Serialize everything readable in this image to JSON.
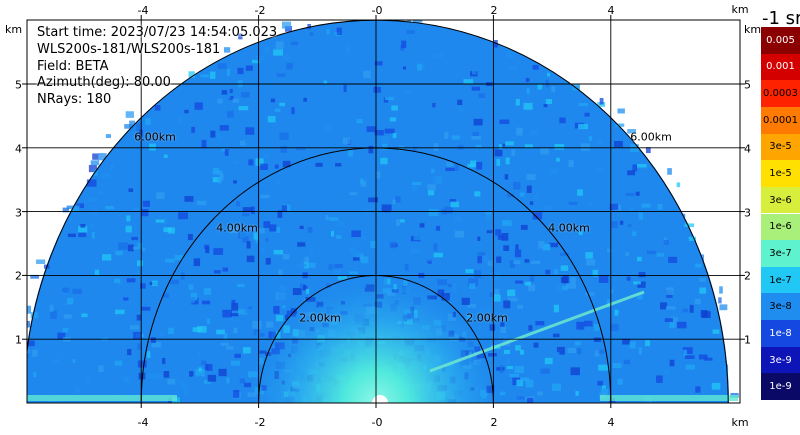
{
  "info": {
    "start_time": "Start time: 2023/07/23 14:54:05.023",
    "instrument": "WLS200s-181/WLS200s-181",
    "field": "Field: BETA",
    "azimuth": "Azimuth(deg): 80.00",
    "nrays": "NRays: 180"
  },
  "axes": {
    "unit": "km",
    "x_ticks": [
      "-4",
      "-2",
      "-0",
      "2",
      "4"
    ],
    "y_ticks": [
      "5",
      "4",
      "3",
      "2",
      "1"
    ],
    "x_tick_values": [
      -4,
      -2,
      0,
      2,
      4
    ],
    "y_tick_values": [
      5,
      4,
      3,
      2,
      1
    ],
    "xlim": [
      -6,
      6
    ],
    "ylim": [
      0,
      6
    ]
  },
  "rings": [
    {
      "label": "2.00km",
      "radius_km": 2
    },
    {
      "label": "4.00km",
      "radius_km": 4
    },
    {
      "label": "6.00km",
      "radius_km": 6
    }
  ],
  "colorbar": {
    "title": "-1 sr",
    "levels": [
      {
        "label": "0.005",
        "color": "#8b0000"
      },
      {
        "label": "0.001",
        "color": "#d40000"
      },
      {
        "label": "0.0003",
        "color": "#ff2200"
      },
      {
        "label": "0.0001",
        "color": "#ff7a00"
      },
      {
        "label": "3e-5",
        "color": "#ffa500"
      },
      {
        "label": "1e-5",
        "color": "#ffe000"
      },
      {
        "label": "3e-6",
        "color": "#d8ee3c"
      },
      {
        "label": "1e-6",
        "color": "#a8f07a"
      },
      {
        "label": "3e-7",
        "color": "#5ff2ce"
      },
      {
        "label": "1e-7",
        "color": "#21c8f5"
      },
      {
        "label": "3e-8",
        "color": "#1f8df0"
      },
      {
        "label": "1e-8",
        "color": "#1448e0"
      },
      {
        "label": "3e-9",
        "color": "#0d14b8"
      },
      {
        "label": "1e-9",
        "color": "#0a0a66"
      }
    ]
  }
}
